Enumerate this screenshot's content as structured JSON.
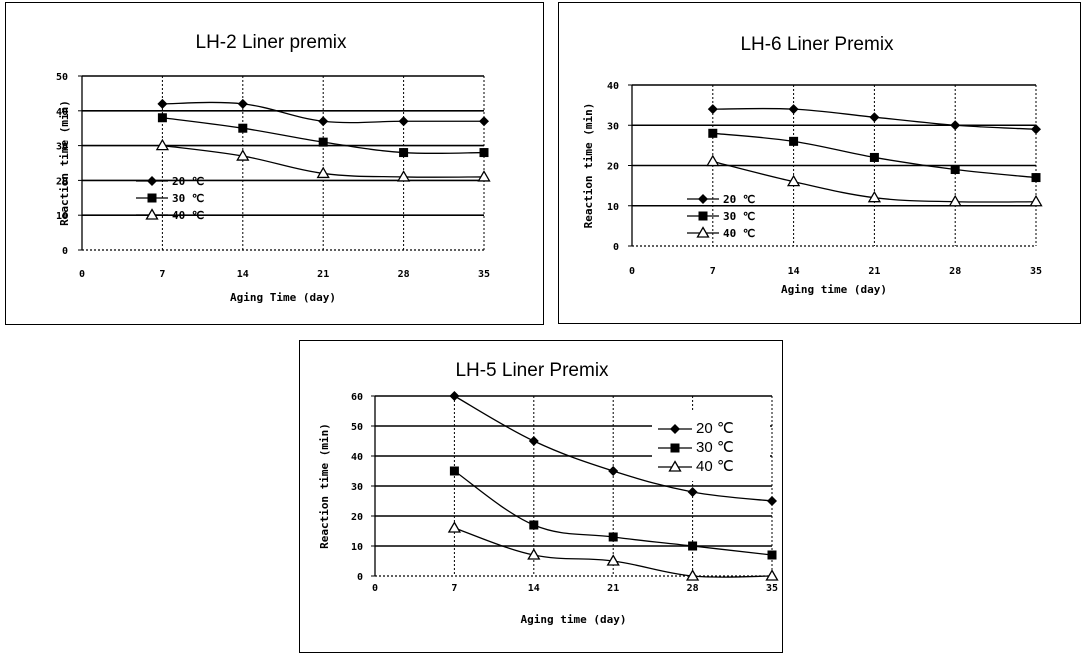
{
  "chart_data": [
    {
      "type": "line",
      "title": "LH-2 Liner premix",
      "xlabel": "Aging Time (day)",
      "ylabel": "Reaction time (min)",
      "xlim": [
        0,
        35
      ],
      "ylim": [
        0,
        50
      ],
      "xticks": [
        0,
        7,
        14,
        21,
        28,
        35
      ],
      "yticks": [
        0,
        10,
        20,
        30,
        40,
        50
      ],
      "legend_position": "left",
      "x": [
        7,
        14,
        21,
        28,
        35
      ],
      "series": [
        {
          "name": "20 ℃",
          "marker": "diamond",
          "values": [
            42,
            42,
            37,
            37,
            37
          ]
        },
        {
          "name": "30 ℃",
          "marker": "square",
          "values": [
            38,
            35,
            31,
            28,
            28
          ]
        },
        {
          "name": "40 ℃",
          "marker": "triangle",
          "values": [
            30,
            27,
            22,
            21,
            21
          ]
        }
      ]
    },
    {
      "type": "line",
      "title": "LH-6 Liner Premix",
      "xlabel": "Aging time (day)",
      "ylabel": "Reaction time (min)",
      "xlim": [
        0,
        35
      ],
      "ylim": [
        0,
        40
      ],
      "xticks": [
        0,
        7,
        14,
        21,
        28,
        35
      ],
      "yticks": [
        0,
        10,
        20,
        30,
        40
      ],
      "legend_position": "bottom-left",
      "x": [
        7,
        14,
        21,
        28,
        35
      ],
      "series": [
        {
          "name": "20 ℃",
          "marker": "diamond",
          "values": [
            34,
            34,
            32,
            30,
            29
          ]
        },
        {
          "name": "30 ℃",
          "marker": "square",
          "values": [
            28,
            26,
            22,
            19,
            17
          ]
        },
        {
          "name": "40 ℃",
          "marker": "triangle",
          "values": [
            21,
            16,
            12,
            11,
            11
          ]
        }
      ]
    },
    {
      "type": "line",
      "title": "LH-5 Liner Premix",
      "xlabel": "Aging time (day)",
      "ylabel": "Reaction time (min)",
      "xlim": [
        0,
        35
      ],
      "ylim": [
        0,
        60
      ],
      "xticks": [
        0,
        7,
        14,
        21,
        28,
        35
      ],
      "yticks": [
        0,
        10,
        20,
        30,
        40,
        50,
        60
      ],
      "legend_position": "top-right",
      "x": [
        7,
        14,
        21,
        28,
        35
      ],
      "series": [
        {
          "name": "20 ℃",
          "marker": "diamond",
          "values": [
            60,
            45,
            35,
            28,
            25
          ]
        },
        {
          "name": "30 ℃",
          "marker": "square",
          "values": [
            35,
            17,
            13,
            10,
            7
          ]
        },
        {
          "name": "40 ℃",
          "marker": "triangle",
          "values": [
            16,
            7,
            5,
            0,
            0
          ]
        }
      ]
    }
  ]
}
